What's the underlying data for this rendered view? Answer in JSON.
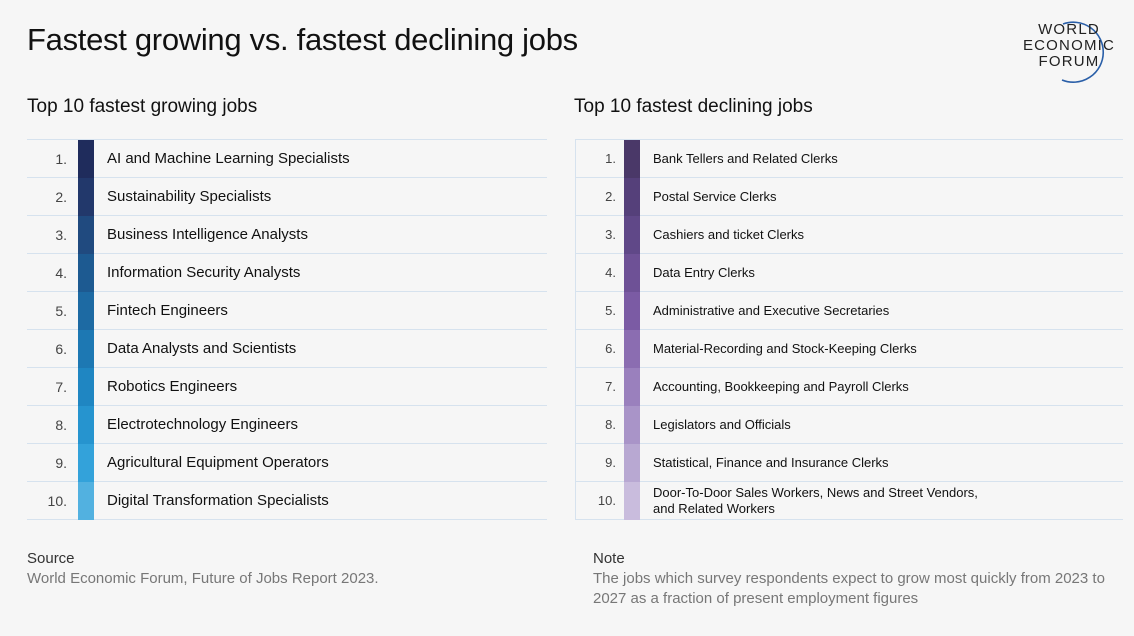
{
  "title": "Fastest growing vs. fastest declining jobs",
  "logo": {
    "lines": [
      "WORLD",
      "ECONOMIC",
      "FORUM"
    ]
  },
  "chart_data": {
    "type": "table",
    "tables": [
      {
        "title": "Top 10 fastest growing jobs",
        "color_scale": [
          "#1f2c5c",
          "#22386b",
          "#204a7f",
          "#1d5a91",
          "#1d6aa3",
          "#1d78b3",
          "#1f86c2",
          "#2694cf",
          "#33a2da",
          "#52b1e0"
        ],
        "rows": [
          {
            "rank": "1.",
            "job": "AI and Machine Learning Specialists"
          },
          {
            "rank": "2.",
            "job": "Sustainability Specialists"
          },
          {
            "rank": "3.",
            "job": "Business Intelligence Analysts"
          },
          {
            "rank": "4.",
            "job": "Information Security Analysts"
          },
          {
            "rank": "5.",
            "job": "Fintech Engineers"
          },
          {
            "rank": "6.",
            "job": "Data Analysts and Scientists"
          },
          {
            "rank": "7.",
            "job": "Robotics Engineers"
          },
          {
            "rank": "8.",
            "job": "Electrotechnology Engineers"
          },
          {
            "rank": "9.",
            "job": "Agricultural Equipment Operators"
          },
          {
            "rank": "10.",
            "job": "Digital Transformation Specialists"
          }
        ]
      },
      {
        "title": "Top 10 fastest declining jobs",
        "color_scale": [
          "#4a3868",
          "#55407a",
          "#604888",
          "#6e5196",
          "#7b5ba4",
          "#8b6db1",
          "#9a80bd",
          "#a994c8",
          "#b8a8d2",
          "#c9bcdd"
        ],
        "rows": [
          {
            "rank": "1.",
            "job": "Bank Tellers and Related Clerks"
          },
          {
            "rank": "2.",
            "job": "Postal Service Clerks"
          },
          {
            "rank": "3.",
            "job": "Cashiers and ticket Clerks"
          },
          {
            "rank": "4.",
            "job": "Data Entry Clerks"
          },
          {
            "rank": "5.",
            "job": "Administrative and Executive Secretaries"
          },
          {
            "rank": "6.",
            "job": "Material-Recording and Stock-Keeping Clerks"
          },
          {
            "rank": "7.",
            "job": "Accounting, Bookkeeping and Payroll Clerks"
          },
          {
            "rank": "8.",
            "job": "Legislators and Officials"
          },
          {
            "rank": "9.",
            "job": "Statistical, Finance and Insurance Clerks"
          },
          {
            "rank": "10.",
            "job": "Door-To-Door Sales Workers, News and Street Vendors,\nand Related Workers"
          }
        ]
      }
    ]
  },
  "footer": {
    "source_label": "Source",
    "source_text": "World Economic Forum, Future of Jobs Report 2023.",
    "note_label": "Note",
    "note_text": "The jobs which survey respondents expect to grow most quickly from 2023 to 2027 as a fraction of present employment figures"
  }
}
